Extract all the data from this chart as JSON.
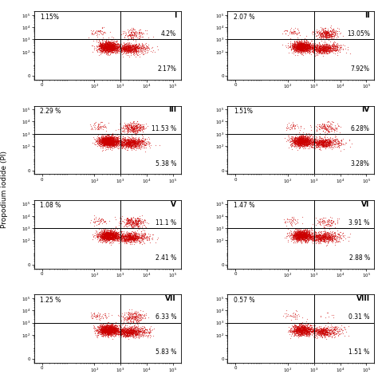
{
  "panels": [
    {
      "label": "I",
      "ul": "1.15%",
      "ur": "4.2%",
      "lr": "2.17%",
      "n": 2500,
      "has_upper_tail": true,
      "upper_density": 0.5
    },
    {
      "label": "II",
      "ul": "2.07 %",
      "ur": "13.05%",
      "lr": "7.92%",
      "n": 2500,
      "has_upper_tail": true,
      "upper_density": 1.2
    },
    {
      "label": "III",
      "ul": "2.29 %",
      "ur": "11.53 %",
      "lr": "5.38 %",
      "n": 2800,
      "has_upper_tail": true,
      "upper_density": 1.0
    },
    {
      "label": "IV",
      "ul": "1.51%",
      "ur": "6.28%",
      "lr": "3.28%",
      "n": 2200,
      "has_upper_tail": true,
      "upper_density": 0.6
    },
    {
      "label": "V",
      "ul": "1.08 %",
      "ur": "11.1 %",
      "lr": "2.41 %",
      "n": 2500,
      "has_upper_tail": true,
      "upper_density": 1.0
    },
    {
      "label": "VI",
      "ul": "1.47 %",
      "ur": "3.91 %",
      "lr": "2.88 %",
      "n": 2200,
      "has_upper_tail": true,
      "upper_density": 0.4
    },
    {
      "label": "VII",
      "ul": "1.25 %",
      "ur": "6.33 %",
      "lr": "5.83 %",
      "n": 2800,
      "has_upper_tail": true,
      "upper_density": 0.7
    },
    {
      "label": "VIII",
      "ul": "0.57 %",
      "ur": "0.31 %",
      "lr": "1.51 %",
      "n": 1800,
      "has_upper_tail": false,
      "upper_density": 0.05
    }
  ],
  "dot_color": "#cc0000",
  "dot_alpha": 0.55,
  "dot_size": 0.8,
  "xline": 1000,
  "yline": 1000,
  "xlim": [
    0.5,
    200000
  ],
  "ylim": [
    0.5,
    200000
  ],
  "ylabel": "Propodium iodide (PI)",
  "background_color": "#ffffff",
  "text_color": "#000000"
}
